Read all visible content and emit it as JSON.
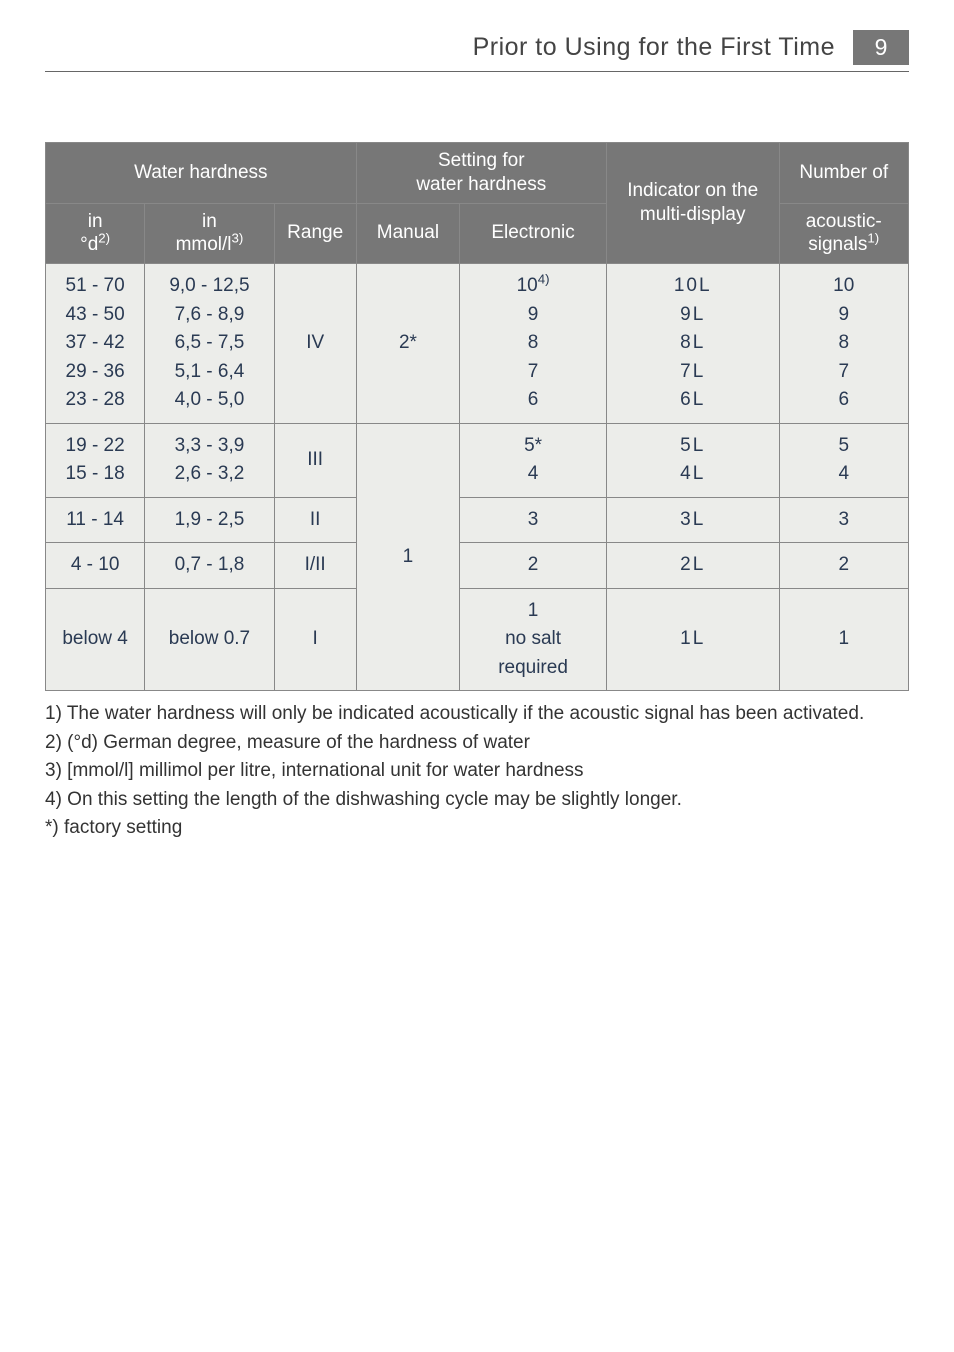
{
  "header": {
    "title": "Prior to Using for the First Time",
    "page_number": "9"
  },
  "table": {
    "col_widths_pct": [
      11.5,
      15,
      9.5,
      12,
      17,
      20,
      15
    ],
    "header_group": {
      "water_hardness": "Water hardness",
      "setting": "Setting for\nwater hardness",
      "indicator": "Indicator on the multi-display",
      "number_of": "Number of",
      "acoustic_signals": "acoustic-signals",
      "acoustic_signals_sup": "1)"
    },
    "header_sub": {
      "in_d": "in\n°d",
      "in_d_sup": "2)",
      "in_mmol": "in\nmmol/l",
      "in_mmol_sup": "3)",
      "range": "Range",
      "manual": "Manual",
      "electronic": "Electronic"
    },
    "rows": [
      {
        "d": "51 - 70\n43 - 50\n37 - 42\n29 - 36\n23 - 28",
        "mmol": "9,0 - 12,5\n7,6 - 8,9\n6,5 - 7,5\n5,1 - 6,4\n4,0 - 5,0",
        "range": "IV",
        "manual": "2*",
        "electronic_pre": "10",
        "electronic_sup": "4)",
        "electronic_rest": "9\n8\n7\n6",
        "indicator": "10L\n9L\n8L\n7L\n6L",
        "signals": "10\n9\n8\n7\n6"
      },
      {
        "d": "19 - 22\n15 - 18",
        "mmol": "3,3 - 3,9\n2,6 - 3,2",
        "range": "III",
        "electronic": "5*\n4",
        "indicator": "5L\n4L",
        "signals": "5\n4"
      },
      {
        "d": "11 - 14",
        "mmol": "1,9 - 2,5",
        "range": "II",
        "electronic": "3",
        "indicator": "3L",
        "signals": "3"
      },
      {
        "d": "4 - 10",
        "mmol": "0,7 - 1,8",
        "range": "I/II",
        "manual": "1",
        "electronic": "2",
        "indicator": "2L",
        "signals": "2"
      },
      {
        "d": "below 4",
        "mmol": "below 0.7",
        "range": "I",
        "electronic": "1\nno salt\nrequired",
        "indicator": "1L",
        "signals": "1"
      }
    ]
  },
  "notes": {
    "n1": "1) The water hardness will only be indicated acoustically if the acoustic signal has been activated.",
    "n2": "2) (°d) German degree, measure of the hardness of water",
    "n3": "3) [mmol/l] millimol per litre, international unit for water hardness",
    "n4": "4) On this setting the length of the dishwashing cycle may be slightly longer.",
    "star": "*)  factory setting"
  },
  "colors": {
    "header_bg": "#777777",
    "header_fg": "#ffffff",
    "cell_bg": "#ecedea",
    "cell_fg": "#2a3a53",
    "border": "#888888",
    "page_num_bg": "#777777"
  }
}
